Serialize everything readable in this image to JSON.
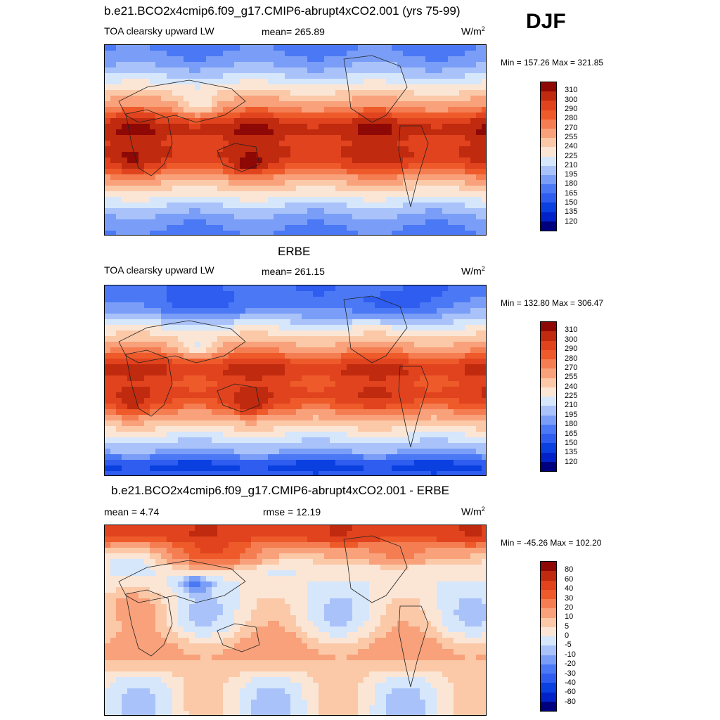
{
  "season": "DJF",
  "palette": {
    "abs": [
      "#00007f",
      "#0022c8",
      "#0a3fe0",
      "#2f5df0",
      "#4b78f5",
      "#7a9ef7",
      "#a9c3fa",
      "#d6e6fb",
      "#fbe6d6",
      "#fbc9a8",
      "#f8a17a",
      "#f47e52",
      "#ee5a2a",
      "#e0431e",
      "#c02a0e",
      "#8e0805"
    ],
    "diff": [
      "#00007f",
      "#0022c8",
      "#0a3fe0",
      "#2f5df0",
      "#4b78f5",
      "#7a9ef7",
      "#a9c3fa",
      "#d6e6fb",
      "#fbe6d6",
      "#fbc9a8",
      "#f8a17a",
      "#f47e52",
      "#ee5a2a",
      "#e0431e",
      "#c02a0e",
      "#8e0805"
    ]
  },
  "panels": [
    {
      "title": "b.e21.BCO2x4cmip6.f09_g17.CMIP6-abrupt4xCO2.001 (yrs 75-99)",
      "left_label": "TOA clearsky upward LW",
      "center_label": "mean= 265.89",
      "units_base": "W/m",
      "units_exp": "2",
      "minmax": "Min = 157.26 Max = 321.85",
      "colorbar_labels": [
        "310",
        "300",
        "290",
        "280",
        "270",
        "255",
        "240",
        "225",
        "210",
        "195",
        "180",
        "165",
        "150",
        "135",
        "120"
      ],
      "field": "model"
    },
    {
      "title": "ERBE",
      "left_label": "TOA clearsky upward LW",
      "center_label": "mean= 261.15",
      "units_base": "W/m",
      "units_exp": "2",
      "minmax": "Min = 132.80 Max = 306.47",
      "colorbar_labels": [
        "310",
        "300",
        "290",
        "280",
        "270",
        "255",
        "240",
        "225",
        "210",
        "195",
        "180",
        "165",
        "150",
        "135",
        "120"
      ],
      "field": "obs"
    },
    {
      "title": "b.e21.BCO2x4cmip6.f09_g17.CMIP6-abrupt4xCO2.001 - ERBE",
      "left_label": "mean =   4.74",
      "center_label": "rmse =  12.19",
      "units_base": "W/m",
      "units_exp": "2",
      "minmax": "Min = -45.26 Max = 102.20",
      "colorbar_labels": [
        "80",
        "60",
        "40",
        "30",
        "20",
        "10",
        "5",
        "0",
        "-5",
        "-10",
        "-20",
        "-30",
        "-40",
        "-60",
        "-80"
      ],
      "field": "diff"
    }
  ]
}
